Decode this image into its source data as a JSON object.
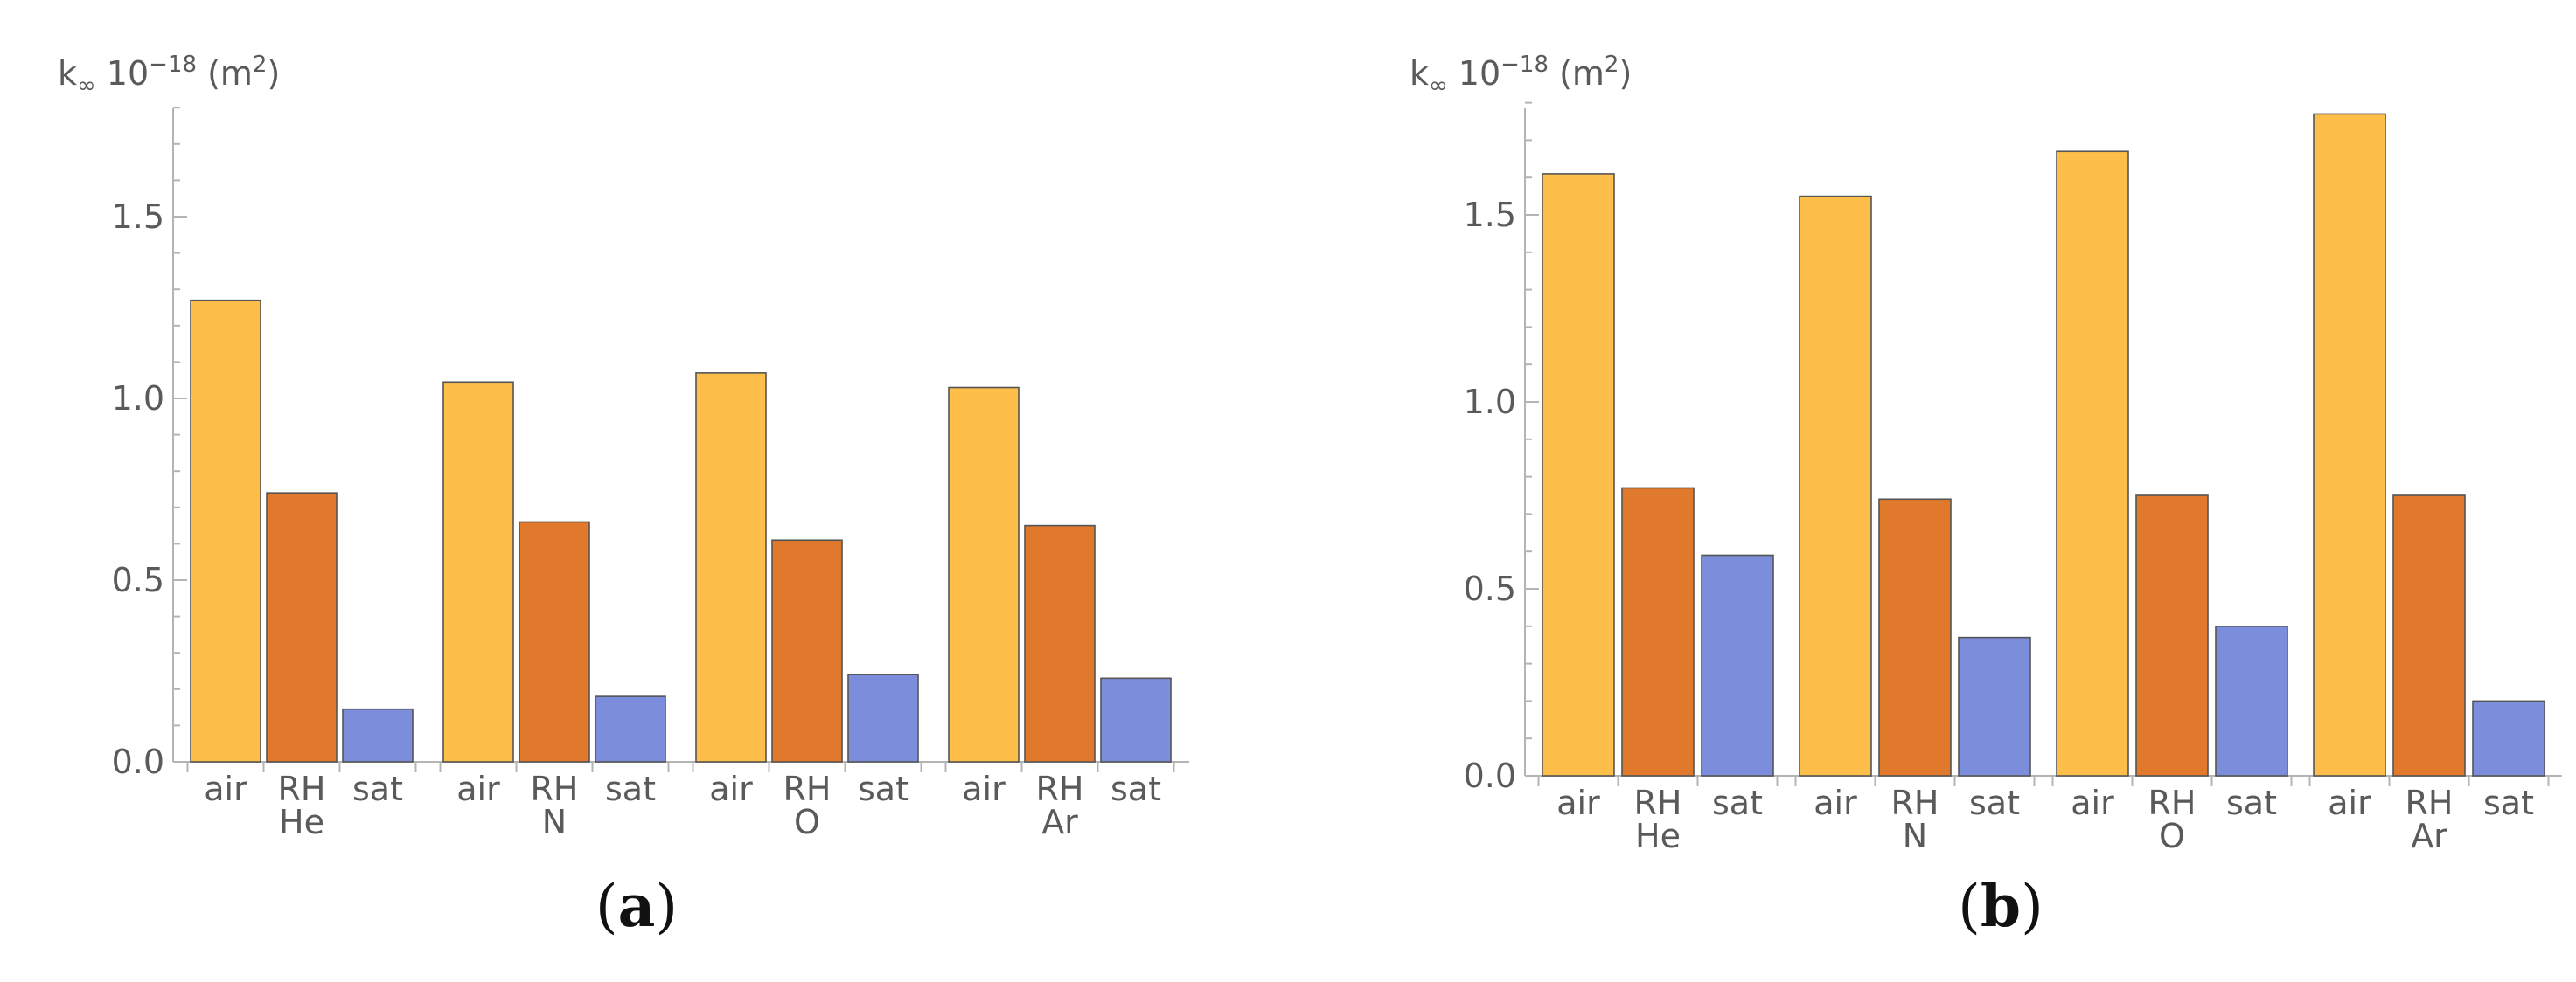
{
  "colors": {
    "air": "#FDBE4A",
    "RH": "#E0792B",
    "sat": "#7B8DDB",
    "axis": "#b4b4b4",
    "text": "#5a5a5a"
  },
  "chart_data": [
    {
      "type": "bar",
      "panel_label": "a",
      "ylabel": {
        "base": "k",
        "sub": "∞",
        "mid": " 10",
        "sup": "−18",
        "unit_open": " (m",
        "unit_sup": "2",
        "unit_close": ")"
      },
      "ylim": [
        0,
        1.8
      ],
      "yticks": [
        0.0,
        0.5,
        1.0,
        1.5
      ],
      "ytick_labels": [
        "0.0",
        "0.5",
        "1.0",
        "1.5"
      ],
      "groups": [
        {
          "name": "He",
          "bars": [
            {
              "label": "air",
              "value": 1.27
            },
            {
              "label": "RH",
              "value": 0.74
            },
            {
              "label": "sat",
              "value": 0.145
            }
          ]
        },
        {
          "name": "N",
          "bars": [
            {
              "label": "air",
              "value": 1.045
            },
            {
              "label": "RH",
              "value": 0.66
            },
            {
              "label": "sat",
              "value": 0.18
            }
          ]
        },
        {
          "name": "O",
          "bars": [
            {
              "label": "air",
              "value": 1.07
            },
            {
              "label": "RH",
              "value": 0.61
            },
            {
              "label": "sat",
              "value": 0.24
            }
          ]
        },
        {
          "name": "Ar",
          "bars": [
            {
              "label": "air",
              "value": 1.03
            },
            {
              "label": "RH",
              "value": 0.65
            },
            {
              "label": "sat",
              "value": 0.23
            }
          ]
        }
      ]
    },
    {
      "type": "bar",
      "panel_label": "b",
      "ylabel": {
        "base": "k",
        "sub": "∞",
        "mid": " 10",
        "sup": "−18",
        "unit_open": " (m",
        "unit_sup": "2",
        "unit_close": ")"
      },
      "ylim": [
        0,
        1.8
      ],
      "yticks": [
        0.0,
        0.5,
        1.0,
        1.5
      ],
      "ytick_labels": [
        "0.0",
        "0.5",
        "1.0",
        "1.5"
      ],
      "groups": [
        {
          "name": "He",
          "bars": [
            {
              "label": "air",
              "value": 1.61
            },
            {
              "label": "RH",
              "value": 0.77
            },
            {
              "label": "sat",
              "value": 0.59
            }
          ]
        },
        {
          "name": "N",
          "bars": [
            {
              "label": "air",
              "value": 1.55
            },
            {
              "label": "RH",
              "value": 0.74
            },
            {
              "label": "sat",
              "value": 0.37
            }
          ]
        },
        {
          "name": "O",
          "bars": [
            {
              "label": "air",
              "value": 1.67
            },
            {
              "label": "RH",
              "value": 0.75
            },
            {
              "label": "sat",
              "value": 0.4
            }
          ]
        },
        {
          "name": "Ar",
          "bars": [
            {
              "label": "air",
              "value": 1.77
            },
            {
              "label": "RH",
              "value": 0.75
            },
            {
              "label": "sat",
              "value": 0.2
            }
          ]
        }
      ]
    }
  ]
}
